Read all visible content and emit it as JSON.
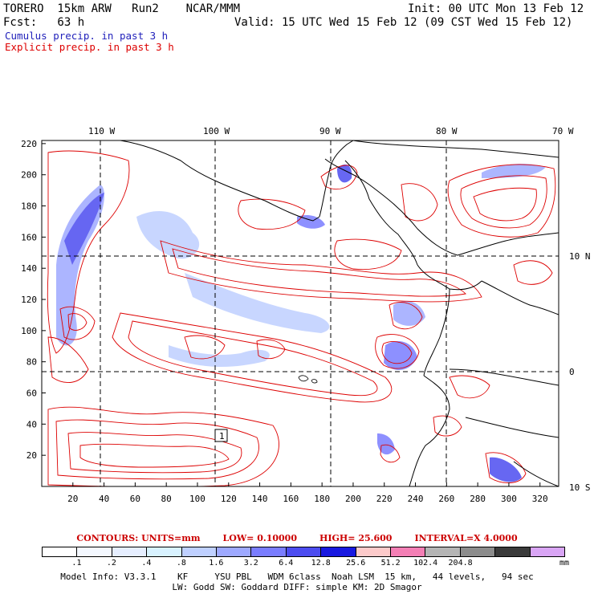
{
  "header": {
    "model": "TORERO  15km ARW   Run2    NCAR/MMM",
    "init": "Init: 00 UTC Mon 13 Feb 12",
    "fcst": "Fcst:   63 h",
    "valid": "Valid: 15 UTC Wed 15 Feb 12 (09 CST Wed 15 Feb 12)"
  },
  "legend": {
    "cumulus": "Cumulus precip. in past 3 h",
    "explicit": "Explicit precip. in past 3 h",
    "cumulus_color": "#2222bb",
    "explicit_color": "#dd0000"
  },
  "map": {
    "top_lon_labels": [
      "110 W",
      "100 W",
      "90 W",
      "80 W",
      "70 W"
    ],
    "right_lat_labels": [
      "10 N",
      "0",
      "10 S"
    ],
    "y_ticks": [
      "20",
      "40",
      "60",
      "80",
      "100",
      "120",
      "140",
      "160",
      "180",
      "200",
      "220"
    ],
    "x_ticks": [
      "20",
      "40",
      "60",
      "80",
      "100",
      "120",
      "140",
      "160",
      "180",
      "200",
      "220",
      "240",
      "260",
      "280",
      "300",
      "320"
    ],
    "inset_label": "1",
    "contour_color": "#dd0000"
  },
  "contours": {
    "label": "CONTOURS:  UNITS=mm",
    "low": "LOW= 0.10000",
    "high": "HIGH=  25.600",
    "interval": "INTERVAL=X  4.0000"
  },
  "colorbar": {
    "colors": [
      "#ffffff",
      "#f4f8ff",
      "#e6eeff",
      "#d8f2ff",
      "#bfd0ff",
      "#9ea9ff",
      "#7a7dff",
      "#4c4cf0",
      "#1818e0",
      "#fccaca",
      "#f47fb5",
      "#b5b5b5",
      "#8c8c8c",
      "#3a3a3a",
      "#d9a5f5"
    ],
    "ticks": [
      ".1",
      ".2",
      ".4",
      ".8",
      "1.6",
      "3.2",
      "6.4",
      "12.8",
      "25.6",
      "51.2",
      "102.4",
      "204.8"
    ],
    "units": "mm"
  },
  "footer": {
    "line1": "Model Info: V3.3.1    KF     YSU PBL   WDM 6class  Noah LSM  15 km,   44 levels,   94 sec",
    "line2": "LW: Godd SW: Goddard DIFF: simple KM: 2D Smagor"
  }
}
